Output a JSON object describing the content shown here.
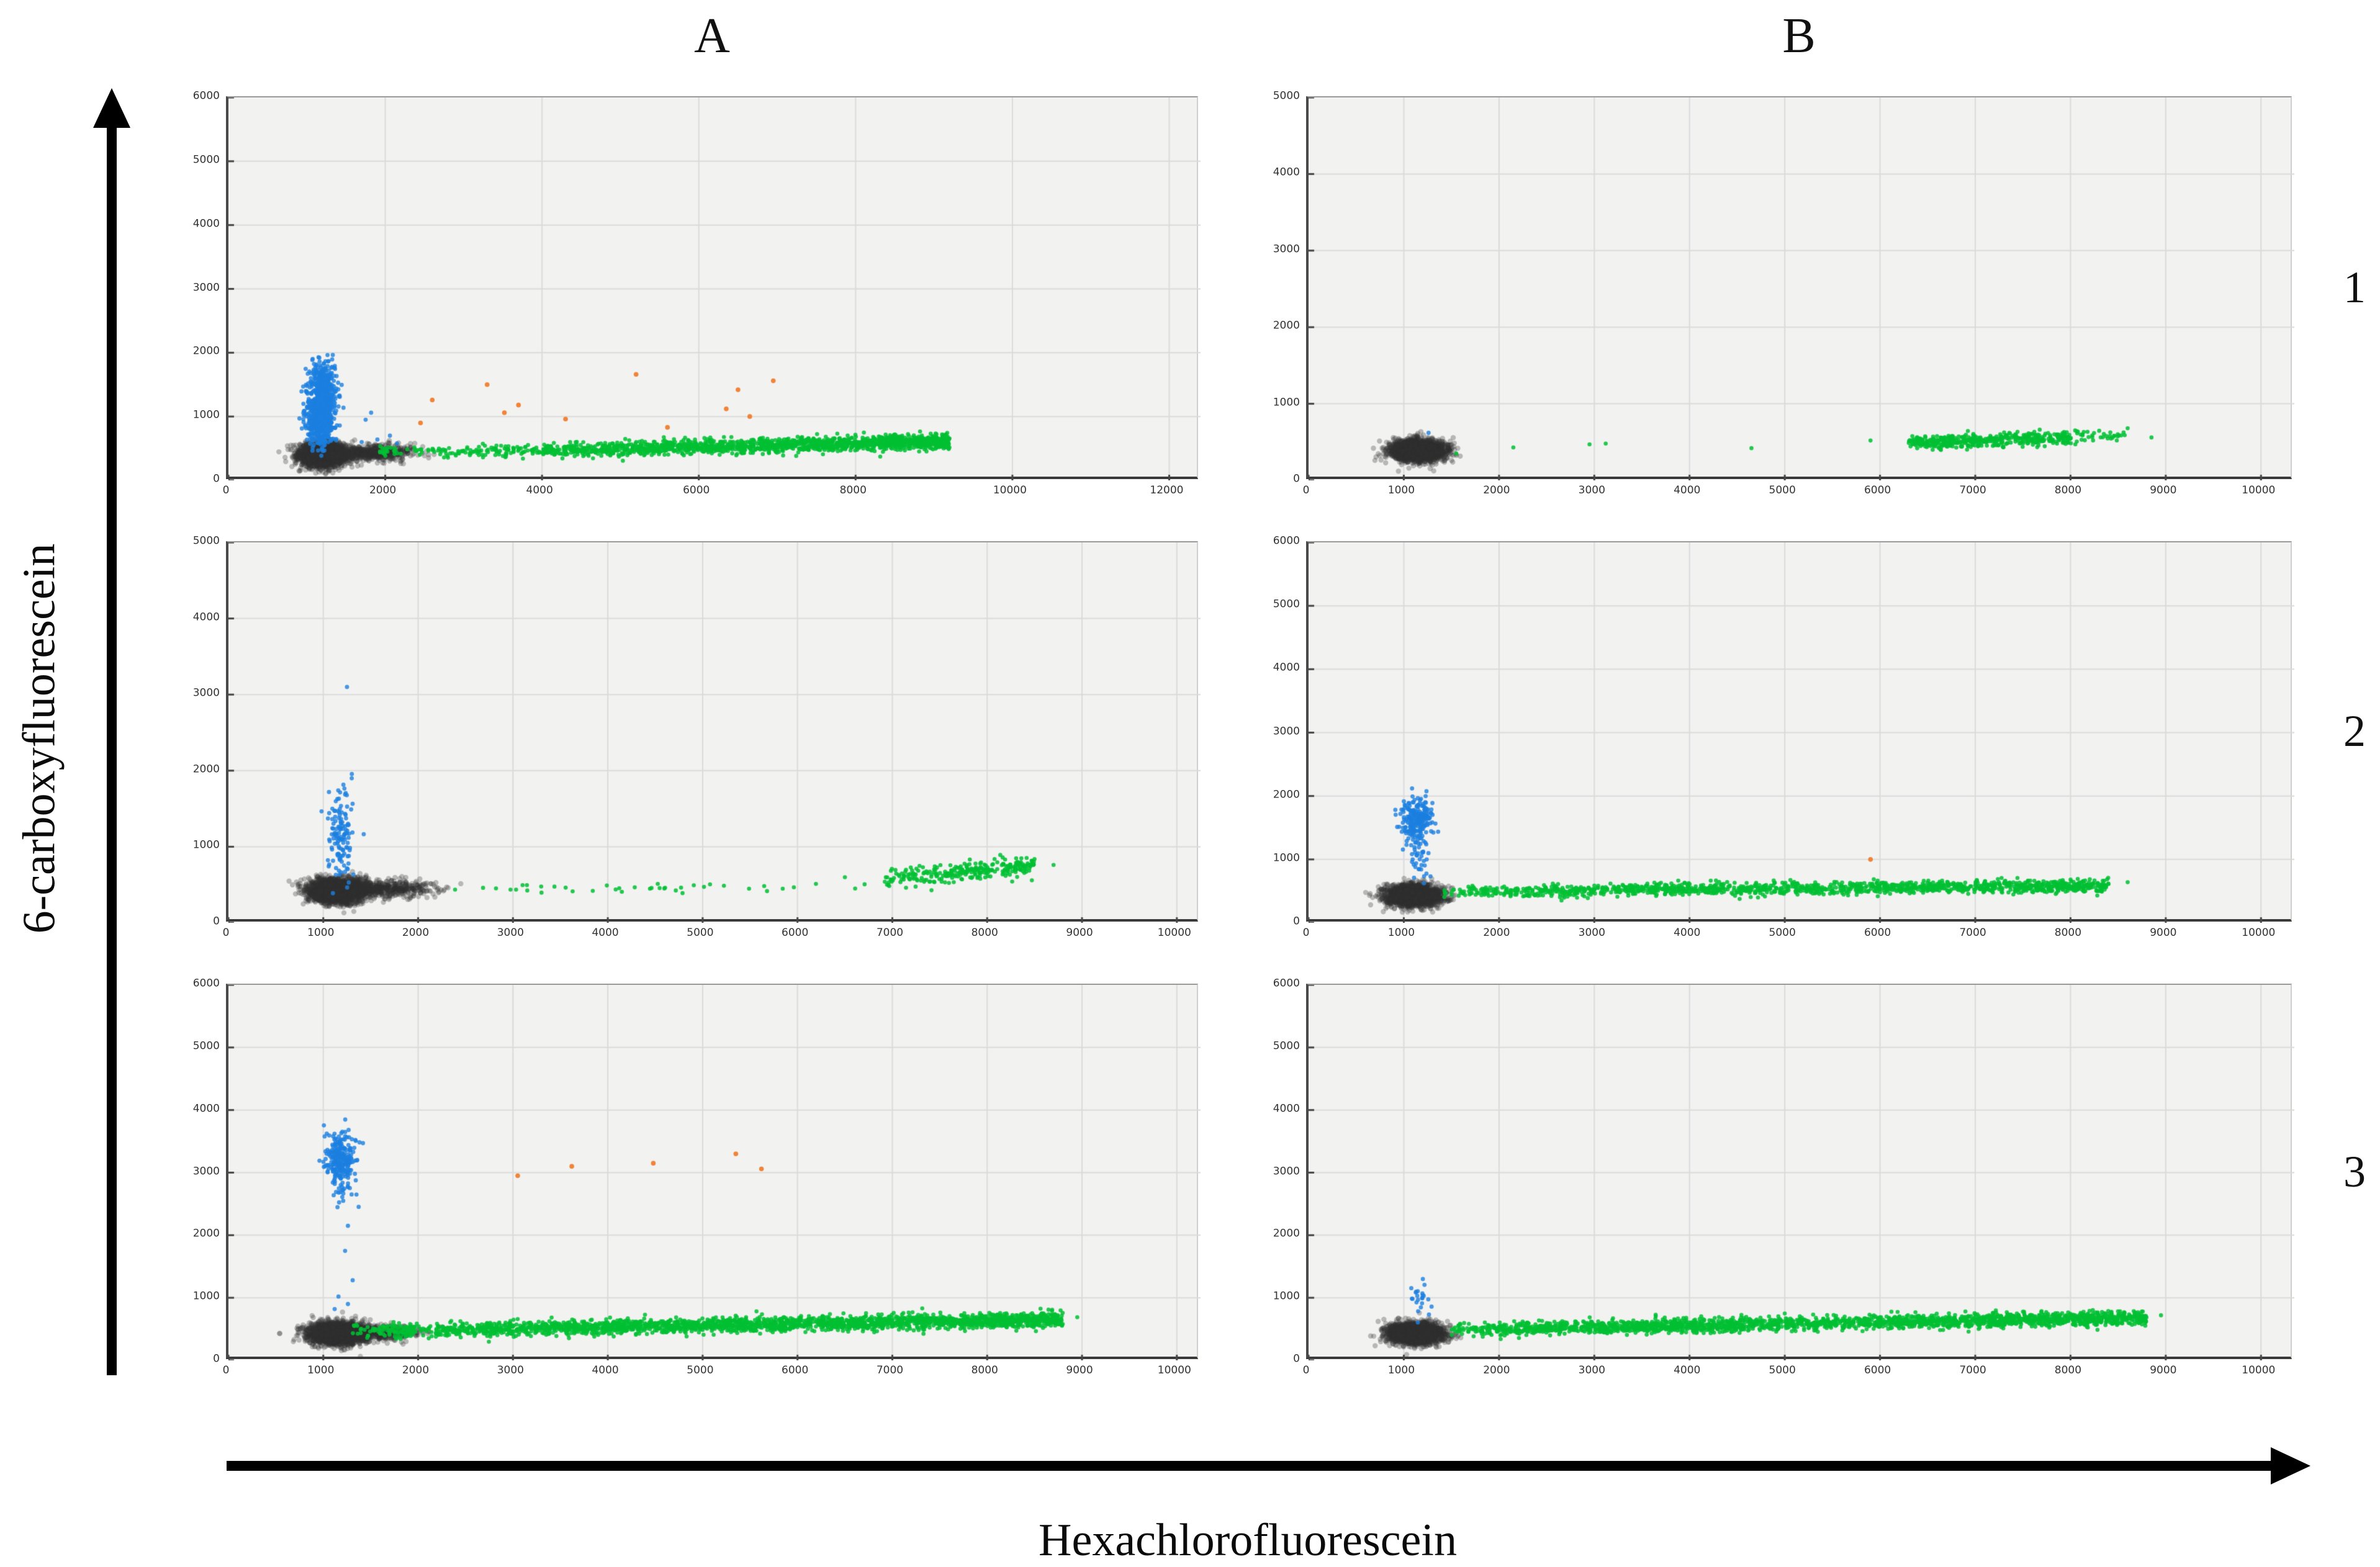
{
  "figure": {
    "column_titles": [
      "A",
      "B"
    ],
    "row_labels": [
      "1",
      "2",
      "3"
    ],
    "y_axis_label": "6-carboxyfluorescein",
    "x_axis_label": "Hexachlorofluorescein"
  },
  "colors": {
    "plot_background": "#f2f2f1",
    "gridline": "#dadada",
    "axis_frame": "#3a3a3a",
    "black_cluster": "#2d2d2d",
    "blue_cluster": "#1b7fe0",
    "green_cluster": "#00bf32",
    "orange_points": "#ef7d2e",
    "arrow": "#000000"
  },
  "chart_data": [
    {
      "id": "A1",
      "column": "A",
      "row": "1",
      "type": "scatter",
      "x_ticks": [
        0,
        2000,
        4000,
        6000,
        8000,
        10000,
        12000
      ],
      "y_ticks": [
        0,
        1000,
        2000,
        3000,
        4000,
        5000,
        6000
      ],
      "x_area_max": 12400,
      "y_area_max": 6000,
      "clusters": [
        {
          "name": "black-cluster-core",
          "color": "gray",
          "shape": "gauss",
          "n": 2200,
          "cx": 1200,
          "cy": 400,
          "sx": 150,
          "sy": 90
        },
        {
          "name": "black-cluster-tail",
          "color": "gray",
          "shape": "gauss",
          "n": 600,
          "cx": 1800,
          "cy": 430,
          "sx": 280,
          "sy": 65
        },
        {
          "name": "blue-cluster-lower-lobe",
          "color": "blue",
          "shape": "gauss",
          "n": 450,
          "cx": 1170,
          "cy": 900,
          "sx": 85,
          "sy": 200
        },
        {
          "name": "blue-cluster-upper-lobe",
          "color": "blue",
          "shape": "gauss",
          "n": 450,
          "cx": 1200,
          "cy": 1400,
          "sx": 90,
          "sy": 230
        },
        {
          "name": "blue-outliers",
          "color": "blue",
          "shape": "points",
          "points": [
            [
              1750,
              950
            ],
            [
              1820,
              1060
            ],
            [
              1900,
              640
            ],
            [
              2060,
              700
            ],
            [
              1700,
              600
            ],
            [
              2150,
              580
            ]
          ]
        },
        {
          "name": "green-band-dense",
          "color": "green",
          "shape": "band",
          "n": 1600,
          "x0": 2600,
          "x1": 9200,
          "y0": 430,
          "y1": 610,
          "sd": 55,
          "bias": 0.55
        },
        {
          "name": "green-band-sparse",
          "color": "green",
          "shape": "band",
          "n": 140,
          "x0": 1900,
          "x1": 5600,
          "y0": 450,
          "y1": 470,
          "sd": 35,
          "bias": 1
        },
        {
          "name": "orange-points",
          "color": "orange",
          "shape": "points",
          "points": [
            [
              2450,
              900
            ],
            [
              2600,
              1260
            ],
            [
              3300,
              1500
            ],
            [
              3520,
              1060
            ],
            [
              3700,
              1180
            ],
            [
              4300,
              960
            ],
            [
              5200,
              1660
            ],
            [
              5600,
              830
            ],
            [
              6350,
              1120
            ],
            [
              6500,
              1420
            ],
            [
              6650,
              1000
            ],
            [
              6950,
              1560
            ]
          ]
        }
      ]
    },
    {
      "id": "B1",
      "column": "B",
      "row": "1",
      "type": "scatter",
      "x_ticks": [
        0,
        1000,
        2000,
        3000,
        4000,
        5000,
        6000,
        7000,
        8000,
        9000,
        10000
      ],
      "y_ticks": [
        0,
        1000,
        2000,
        3000,
        4000,
        5000
      ],
      "x_area_max": 10350,
      "y_area_max": 5000,
      "clusters": [
        {
          "name": "black-cluster-core",
          "color": "gray",
          "shape": "gauss",
          "n": 2200,
          "cx": 1150,
          "cy": 390,
          "sx": 140,
          "sy": 70
        },
        {
          "name": "blue-outlier",
          "color": "blue",
          "shape": "points",
          "points": [
            [
              1260,
              620
            ]
          ]
        },
        {
          "name": "green-singles",
          "color": "green",
          "shape": "points",
          "points": [
            [
              1550,
              350
            ],
            [
              2150,
              430
            ],
            [
              2950,
              470
            ],
            [
              3120,
              480
            ],
            [
              4650,
              420
            ],
            [
              5900,
              520
            ],
            [
              8600,
              680
            ],
            [
              8850,
              560
            ]
          ]
        },
        {
          "name": "green-cluster",
          "color": "green",
          "shape": "band",
          "n": 420,
          "x0": 6300,
          "x1": 8000,
          "y0": 480,
          "y1": 560,
          "sd": 45,
          "bias": 1
        },
        {
          "name": "green-cluster-tail",
          "color": "green",
          "shape": "band",
          "n": 45,
          "x0": 7900,
          "x1": 8600,
          "y0": 540,
          "y1": 620,
          "sd": 50,
          "bias": 1
        }
      ]
    },
    {
      "id": "A2",
      "column": "A",
      "row": "2",
      "type": "scatter",
      "x_ticks": [
        0,
        1000,
        2000,
        3000,
        4000,
        5000,
        6000,
        7000,
        8000,
        9000,
        10000
      ],
      "y_ticks": [
        0,
        1000,
        2000,
        3000,
        4000,
        5000
      ],
      "x_area_max": 10250,
      "y_area_max": 5000,
      "clusters": [
        {
          "name": "black-cluster-core",
          "color": "gray",
          "shape": "gauss",
          "n": 2400,
          "cx": 1150,
          "cy": 420,
          "sx": 150,
          "sy": 80
        },
        {
          "name": "black-cluster-tail",
          "color": "gray",
          "shape": "gauss",
          "n": 500,
          "cx": 1650,
          "cy": 450,
          "sx": 260,
          "sy": 55
        },
        {
          "name": "blue-cluster",
          "color": "blue",
          "shape": "gauss",
          "n": 130,
          "cx": 1180,
          "cy": 1150,
          "sx": 70,
          "sy": 280
        },
        {
          "name": "blue-outliers",
          "color": "blue",
          "shape": "points",
          "points": [
            [
              1250,
              3100
            ],
            [
              1300,
              1900
            ],
            [
              1060,
              1720
            ]
          ]
        },
        {
          "name": "green-band-sparse",
          "color": "green",
          "shape": "band",
          "n": 40,
          "x0": 2300,
          "x1": 6800,
          "y0": 450,
          "y1": 470,
          "sd": 30,
          "bias": 1
        },
        {
          "name": "green-cluster",
          "color": "green",
          "shape": "band",
          "n": 270,
          "x0": 6900,
          "x1": 8500,
          "y0": 580,
          "y1": 740,
          "sd": 65,
          "bias": 0.7
        },
        {
          "name": "green-singles",
          "color": "green",
          "shape": "points",
          "points": [
            [
              8700,
              760
            ],
            [
              6500,
              600
            ]
          ]
        }
      ]
    },
    {
      "id": "B2",
      "column": "B",
      "row": "2",
      "type": "scatter",
      "x_ticks": [
        0,
        1000,
        2000,
        3000,
        4000,
        5000,
        6000,
        7000,
        8000,
        9000,
        10000
      ],
      "y_ticks": [
        0,
        1000,
        2000,
        3000,
        4000,
        5000,
        6000
      ],
      "x_area_max": 10350,
      "y_area_max": 6000,
      "clusters": [
        {
          "name": "black-cluster-core",
          "color": "gray",
          "shape": "gauss",
          "n": 2300,
          "cx": 1100,
          "cy": 430,
          "sx": 140,
          "sy": 80
        },
        {
          "name": "blue-cluster",
          "color": "blue",
          "shape": "gauss",
          "n": 220,
          "cx": 1130,
          "cy": 1650,
          "sx": 80,
          "sy": 180
        },
        {
          "name": "blue-cluster-tail",
          "color": "blue",
          "shape": "gauss",
          "n": 45,
          "cx": 1160,
          "cy": 1050,
          "sx": 60,
          "sy": 260
        },
        {
          "name": "green-band-dense",
          "color": "green",
          "shape": "band",
          "n": 1250,
          "x0": 1500,
          "x1": 8400,
          "y0": 500,
          "y1": 580,
          "sd": 50,
          "bias": 0.7
        },
        {
          "name": "green-band-sparse",
          "color": "green",
          "shape": "band",
          "n": 120,
          "x0": 1400,
          "x1": 4200,
          "y0": 480,
          "y1": 520,
          "sd": 35,
          "bias": 1
        },
        {
          "name": "orange-point",
          "color": "orange",
          "shape": "points",
          "points": [
            [
              5900,
              1000
            ]
          ]
        },
        {
          "name": "green-singles",
          "color": "green",
          "shape": "points",
          "points": [
            [
              8600,
              640
            ]
          ]
        }
      ]
    },
    {
      "id": "A3",
      "column": "A",
      "row": "3",
      "type": "scatter",
      "x_ticks": [
        0,
        1000,
        2000,
        3000,
        4000,
        5000,
        6000,
        7000,
        8000,
        9000,
        10000
      ],
      "y_ticks": [
        0,
        1000,
        2000,
        3000,
        4000,
        5000,
        6000
      ],
      "x_area_max": 10250,
      "y_area_max": 6000,
      "clusters": [
        {
          "name": "black-cluster-core",
          "color": "gray",
          "shape": "gauss",
          "n": 2500,
          "cx": 1150,
          "cy": 430,
          "sx": 150,
          "sy": 85
        },
        {
          "name": "black-cluster-tail",
          "color": "gray",
          "shape": "gauss",
          "n": 400,
          "cx": 1600,
          "cy": 450,
          "sx": 220,
          "sy": 60
        },
        {
          "name": "blue-cluster",
          "color": "blue",
          "shape": "gauss",
          "n": 260,
          "cx": 1190,
          "cy": 3200,
          "sx": 80,
          "sy": 240
        },
        {
          "name": "blue-tail",
          "color": "blue",
          "shape": "points",
          "points": [
            [
              1210,
              2550
            ],
            [
              1260,
              2150
            ],
            [
              1230,
              1750
            ],
            [
              1310,
              1280
            ],
            [
              1160,
              1020
            ],
            [
              1120,
              820
            ],
            [
              1260,
              900
            ],
            [
              1350,
              2650
            ]
          ]
        },
        {
          "name": "green-band-dense",
          "color": "green",
          "shape": "band",
          "n": 2400,
          "x0": 1300,
          "x1": 8800,
          "y0": 470,
          "y1": 650,
          "sd": 55,
          "bias": 0.75
        },
        {
          "name": "green-singles",
          "color": "green",
          "shape": "points",
          "points": [
            [
              8950,
              690
            ]
          ]
        },
        {
          "name": "orange-points",
          "color": "orange",
          "shape": "points",
          "points": [
            [
              3050,
              2950
            ],
            [
              3620,
              3100
            ],
            [
              4480,
              3150
            ],
            [
              5350,
              3300
            ],
            [
              5620,
              3060
            ]
          ]
        }
      ]
    },
    {
      "id": "B3",
      "column": "B",
      "row": "3",
      "type": "scatter",
      "x_ticks": [
        0,
        1000,
        2000,
        3000,
        4000,
        5000,
        6000,
        7000,
        8000,
        9000,
        10000
      ],
      "y_ticks": [
        0,
        1000,
        2000,
        3000,
        4000,
        5000,
        6000
      ],
      "x_area_max": 10350,
      "y_area_max": 6000,
      "clusters": [
        {
          "name": "black-cluster-core",
          "color": "gray",
          "shape": "gauss",
          "n": 2400,
          "cx": 1120,
          "cy": 430,
          "sx": 140,
          "sy": 80
        },
        {
          "name": "blue-speck",
          "color": "blue",
          "shape": "gauss",
          "n": 22,
          "cx": 1150,
          "cy": 950,
          "sx": 55,
          "sy": 130
        },
        {
          "name": "blue-outlier",
          "color": "blue",
          "shape": "points",
          "points": [
            [
              1200,
              1300
            ]
          ]
        },
        {
          "name": "green-band-dense",
          "color": "green",
          "shape": "band",
          "n": 1900,
          "x0": 1400,
          "x1": 8800,
          "y0": 500,
          "y1": 680,
          "sd": 55,
          "bias": 0.65
        },
        {
          "name": "green-band-sparse",
          "color": "green",
          "shape": "band",
          "n": 250,
          "x0": 1500,
          "x1": 4500,
          "y0": 470,
          "y1": 540,
          "sd": 40,
          "bias": 1
        },
        {
          "name": "green-singles",
          "color": "green",
          "shape": "points",
          "points": [
            [
              8950,
              720
            ]
          ]
        }
      ]
    }
  ]
}
